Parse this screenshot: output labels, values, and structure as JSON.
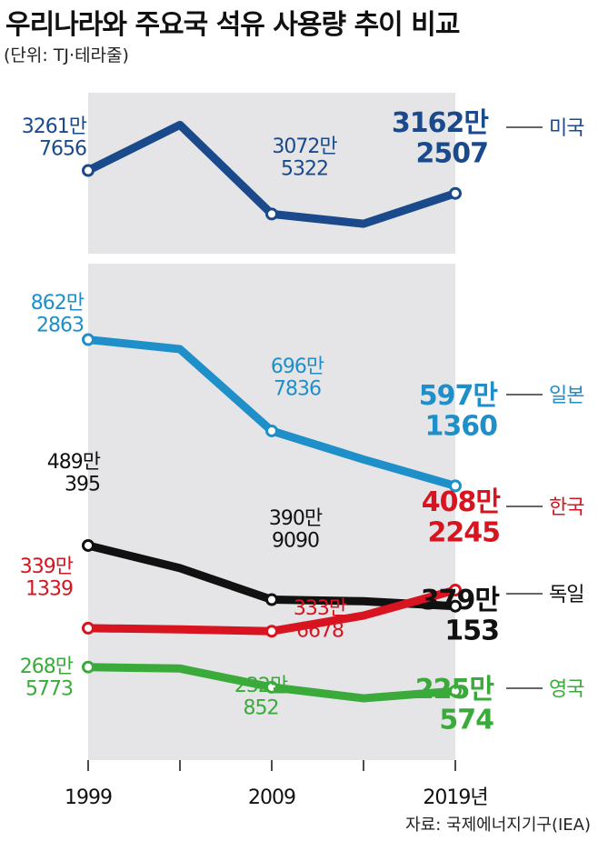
{
  "title": "우리나라와 주요국 석유 사용량 추이 비교",
  "unit_note": "(단위: TJ·테라줄)",
  "source": "자료: 국제에너지기구(IEA)",
  "chart_data": {
    "type": "line",
    "x": [
      1999,
      2004,
      2009,
      2014,
      2019
    ],
    "x_tick_labels": [
      "1999",
      "2009",
      "2019년"
    ],
    "series": [
      {
        "name": "미국",
        "color": "#1a4a8c",
        "values": [
          32617656,
          34600000,
          30725322,
          30300000,
          31622507
        ],
        "labels": [
          [
            "3261만",
            "7656"
          ],
          null,
          [
            "3072만",
            "5322"
          ],
          null,
          [
            "3162만",
            "2507"
          ]
        ]
      },
      {
        "name": "일본",
        "color": "#1e8fc8",
        "values": [
          8622863,
          8450000,
          6967836,
          6450000,
          5971360
        ],
        "labels": [
          [
            "862만",
            "2863"
          ],
          null,
          [
            "696만",
            "7836"
          ],
          null,
          [
            "597만",
            "1360"
          ]
        ]
      },
      {
        "name": "한국",
        "color": "#d7141f",
        "values": [
          3391339,
          3370000,
          3336678,
          3620000,
          4082245
        ],
        "labels": [
          [
            "339만",
            "1339"
          ],
          null,
          [
            "333만",
            "6678"
          ],
          null,
          [
            "408만",
            "2245"
          ]
        ]
      },
      {
        "name": "독일",
        "color": "#111111",
        "values": [
          4890395,
          4480000,
          3909090,
          3880000,
          3790153
        ],
        "labels": [
          [
            "489만",
            "395"
          ],
          null,
          [
            "390만",
            "9090"
          ],
          null,
          [
            "379만",
            "153"
          ]
        ]
      },
      {
        "name": "영국",
        "color": "#3aab3a",
        "values": [
          2685773,
          2660000,
          2320852,
          2120000,
          2250574
        ],
        "labels": [
          [
            "268만",
            "5773"
          ],
          null,
          [
            "232만",
            "852"
          ],
          null,
          [
            "225만",
            "574"
          ]
        ]
      }
    ],
    "panels": [
      {
        "series": [
          "미국"
        ],
        "ylim": [
          29000000,
          36000000
        ]
      },
      {
        "series": [
          "일본",
          "한국",
          "독일",
          "영국"
        ],
        "ylim": [
          1000000,
          10000000
        ]
      }
    ],
    "grid": false,
    "legend": "right-end"
  }
}
